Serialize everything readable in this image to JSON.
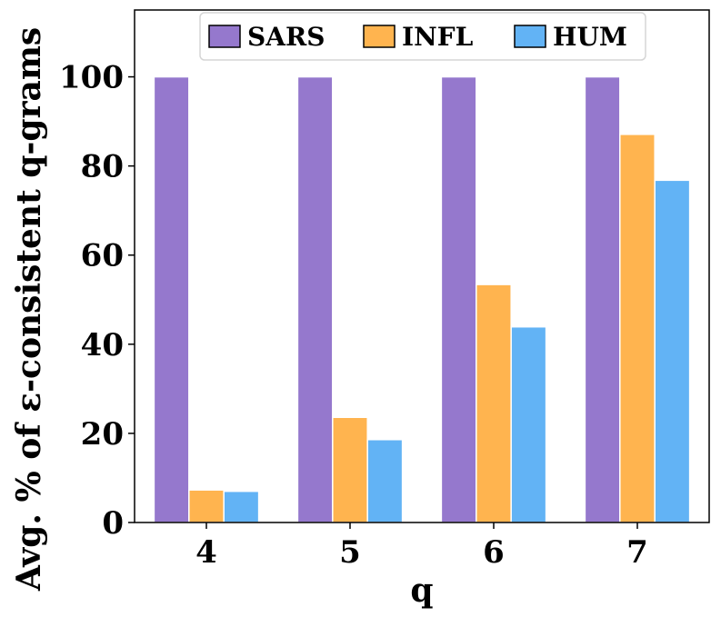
{
  "chart_data": {
    "type": "bar",
    "categories": [
      "4",
      "5",
      "6",
      "7"
    ],
    "series": [
      {
        "name": "SARS",
        "values": [
          100,
          100,
          100,
          100
        ],
        "color": "#9578cd"
      },
      {
        "name": "INFL",
        "values": [
          7.3,
          23.6,
          53.4,
          87.1
        ],
        "color": "#ffb44f"
      },
      {
        "name": "HUM",
        "values": [
          7.0,
          18.6,
          43.9,
          76.8
        ],
        "color": "#62b3f5"
      }
    ],
    "xlabel": "q",
    "ylabel": "Avg. % of ε-consistent q-grams",
    "ylim": [
      0,
      115
    ],
    "yticks": [
      0,
      20,
      40,
      60,
      80,
      100
    ],
    "grid": false,
    "legend_position": "top-center"
  }
}
